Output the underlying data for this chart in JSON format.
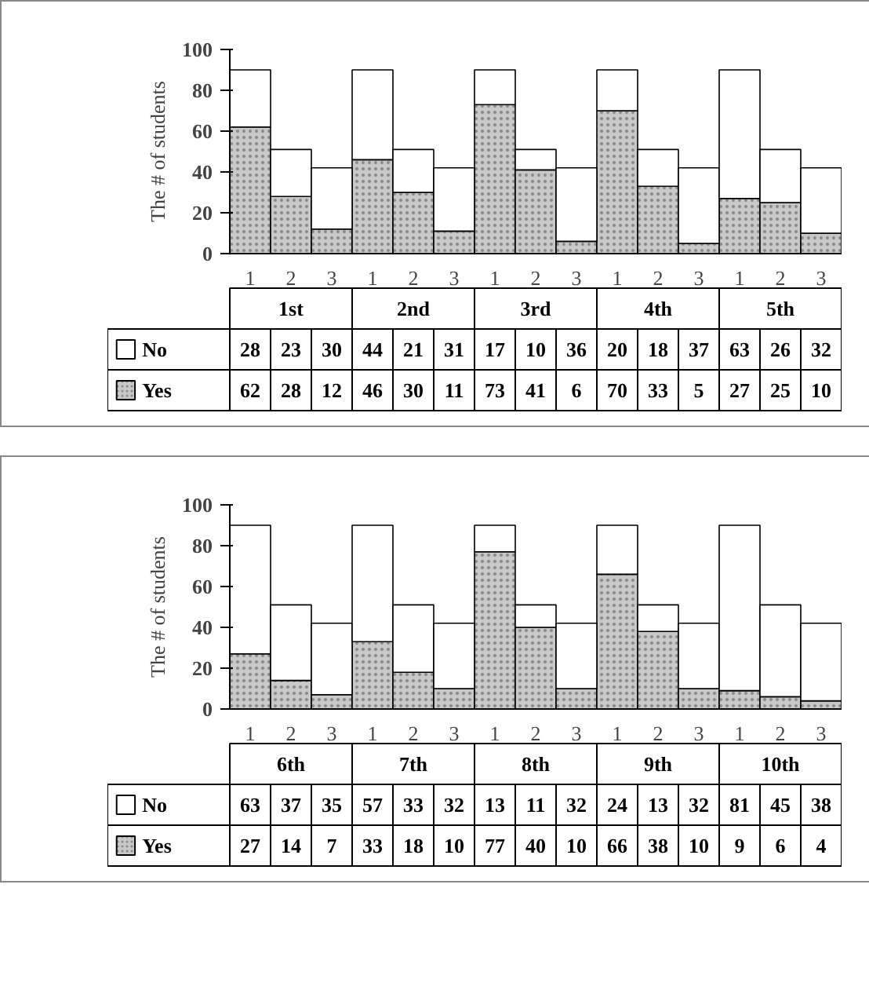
{
  "chart_data": [
    {
      "type": "bar",
      "stacked": true,
      "ylabel": "The # of students",
      "categories": [
        "1",
        "2",
        "3",
        "1",
        "2",
        "3",
        "1",
        "2",
        "3",
        "1",
        "2",
        "3",
        "1",
        "2",
        "3"
      ],
      "annotations": [
        "1st",
        "2nd",
        "3rd",
        "4th",
        "5th"
      ],
      "ylim": [
        0,
        100
      ],
      "yticks": [
        0,
        20,
        40,
        60,
        80,
        100
      ],
      "data_labels": true,
      "legend": "bottom left",
      "series": [
        {
          "name": "Yes",
          "color": "#c8c8c8",
          "values": [
            62,
            28,
            12,
            46,
            30,
            11,
            73,
            41,
            6,
            70,
            33,
            5,
            27,
            25,
            10
          ]
        },
        {
          "name": "No",
          "color": "#ffffff",
          "values": [
            28,
            23,
            30,
            44,
            21,
            31,
            17,
            10,
            36,
            20,
            18,
            37,
            63,
            26,
            32
          ]
        }
      ]
    },
    {
      "type": "bar",
      "stacked": true,
      "ylabel": "The # of students",
      "categories": [
        "1",
        "2",
        "3",
        "1",
        "2",
        "3",
        "1",
        "2",
        "3",
        "1",
        "2",
        "3",
        "1",
        "2",
        "3"
      ],
      "annotations": [
        "6th",
        "7th",
        "8th",
        "9th",
        "10th"
      ],
      "ylim": [
        0,
        100
      ],
      "yticks": [
        0,
        20,
        40,
        60,
        80,
        100
      ],
      "data_labels": true,
      "legend": "bottom left",
      "series": [
        {
          "name": "Yes",
          "color": "#c8c8c8",
          "values": [
            27,
            14,
            7,
            33,
            18,
            10,
            77,
            40,
            10,
            66,
            38,
            10,
            9,
            6,
            4
          ]
        },
        {
          "name": "No",
          "color": "#ffffff",
          "values": [
            63,
            37,
            35,
            57,
            33,
            32,
            13,
            11,
            32,
            24,
            13,
            32,
            81,
            45,
            38
          ]
        }
      ]
    }
  ]
}
